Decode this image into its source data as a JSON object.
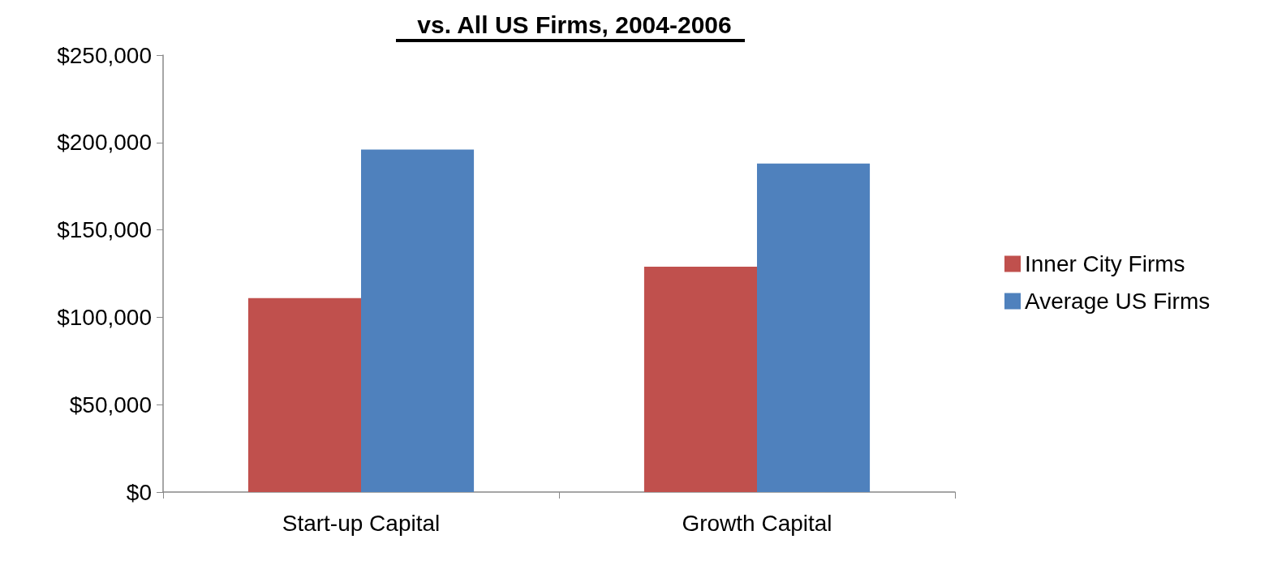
{
  "chart_data": {
    "type": "bar",
    "title": "vs. All US Firms, 2004-2006",
    "categories": [
      "Start-up Capital",
      "Growth Capital"
    ],
    "series": [
      {
        "name": "Inner City Firms",
        "color": "#c0504d",
        "values": [
          111000,
          129000
        ]
      },
      {
        "name": "Average US Firms",
        "color": "#4f81bd",
        "values": [
          196000,
          188000
        ]
      }
    ],
    "ylim": [
      0,
      250000
    ],
    "yticks": [
      {
        "value": 0,
        "label": "$0"
      },
      {
        "value": 50000,
        "label": "$50,000"
      },
      {
        "value": 100000,
        "label": "$100,000"
      },
      {
        "value": 150000,
        "label": "$150,000"
      },
      {
        "value": 200000,
        "label": "$200,000"
      },
      {
        "value": 250000,
        "label": "$250,000"
      }
    ],
    "grid": false,
    "legend": "right"
  }
}
